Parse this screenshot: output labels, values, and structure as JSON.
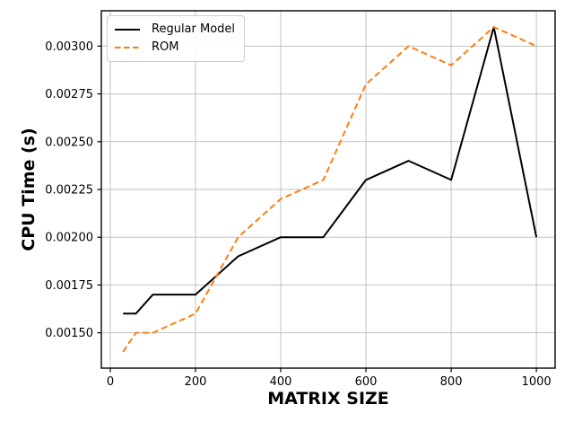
{
  "chart_data": {
    "type": "line",
    "title": "",
    "xlabel": "MATRIX SIZE",
    "ylabel": "CPU Time (s)",
    "x": [
      30,
      60,
      100,
      200,
      300,
      400,
      500,
      600,
      700,
      800,
      900,
      1000
    ],
    "series": [
      {
        "name": "Regular Model",
        "color": "#000000",
        "style": "solid",
        "values": [
          0.0016,
          0.0016,
          0.0017,
          0.0017,
          0.0019,
          0.002,
          0.002,
          0.0023,
          0.0024,
          0.0023,
          0.0031,
          0.002
        ]
      },
      {
        "name": "ROM",
        "color": "#ff7f0e",
        "style": "dashed",
        "values": [
          0.0014,
          0.0015,
          0.0015,
          0.0016,
          0.002,
          0.0022,
          0.0023,
          0.0028,
          0.003,
          0.0029,
          0.0031,
          0.003
        ]
      }
    ],
    "xticks": [
      0,
      200,
      400,
      600,
      800,
      1000
    ],
    "xtick_labels": [
      "0",
      "200",
      "400",
      "600",
      "800",
      "1000"
    ],
    "yticks": [
      0.0015,
      0.00175,
      0.002,
      0.00225,
      0.0025,
      0.00275,
      0.003
    ],
    "ytick_labels": [
      "0.00150",
      "0.00175",
      "0.00200",
      "0.00225",
      "0.00250",
      "0.00275",
      "0.00300"
    ],
    "xlim": [
      -21,
      1044
    ],
    "ylim": [
      0.001315,
      0.003185
    ],
    "grid": true,
    "grid_color": "#c2c2c2",
    "spine_color": "#000000",
    "legend_position": "upper-left"
  }
}
